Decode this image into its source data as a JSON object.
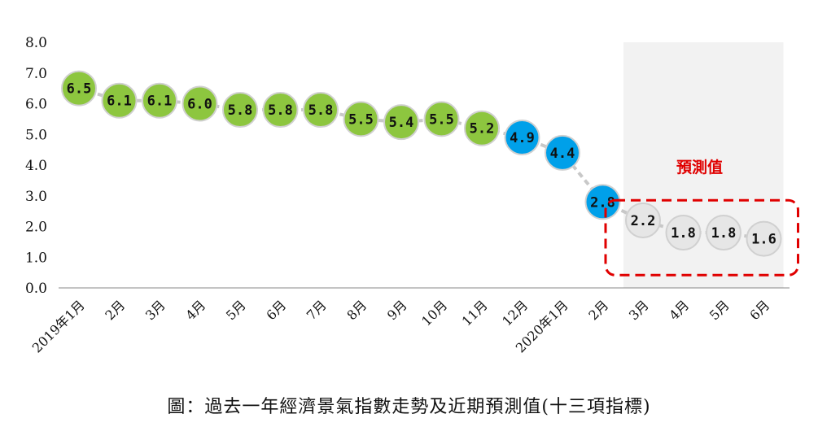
{
  "chart_data": {
    "type": "line",
    "categories": [
      "2019年1月",
      "2月",
      "3月",
      "4月",
      "5月",
      "6月",
      "7月",
      "8月",
      "9月",
      "10月",
      "11月",
      "12月",
      "2020年1月",
      "2月",
      "3月",
      "4月",
      "5月",
      "6月"
    ],
    "values": [
      6.5,
      6.1,
      6.1,
      6.0,
      5.8,
      5.8,
      5.8,
      5.5,
      5.4,
      5.5,
      5.2,
      4.9,
      4.4,
      2.8,
      2.2,
      1.8,
      1.8,
      1.6
    ],
    "value_labels": [
      "6.5",
      "6.1",
      "6.1",
      "6.0",
      "5.8",
      "5.8",
      "5.8",
      "5.5",
      "5.4",
      "5.5",
      "5.2",
      "4.9",
      "4.4",
      "2.8",
      "2.2",
      "1.8",
      "1.8",
      "1.6"
    ],
    "point_colors": [
      "#8dc63f",
      "#8dc63f",
      "#8dc63f",
      "#8dc63f",
      "#8dc63f",
      "#8dc63f",
      "#8dc63f",
      "#8dc63f",
      "#8dc63f",
      "#8dc63f",
      "#8dc63f",
      "#00a0e9",
      "#00a0e9",
      "#00a0e9",
      "#e6e6e6",
      "#e6e6e6",
      "#e6e6e6",
      "#e6e6e6"
    ],
    "yticks": [
      "8.0",
      "7.0",
      "6.0",
      "5.0",
      "4.0",
      "3.0",
      "2.0",
      "1.0",
      "0.0"
    ],
    "ylim": [
      0,
      8
    ],
    "forecast_start_index": 14,
    "forecast_label": "預測值",
    "colors": {
      "line": "#c8c8c8",
      "forecast_shade": "#f2f2f2",
      "forecast_box": "#e00000",
      "axis": "#888888"
    },
    "grid": false,
    "legend": "none"
  },
  "caption": "圖：過去一年經濟景氣指數走勢及近期預測值(十三項指標)"
}
